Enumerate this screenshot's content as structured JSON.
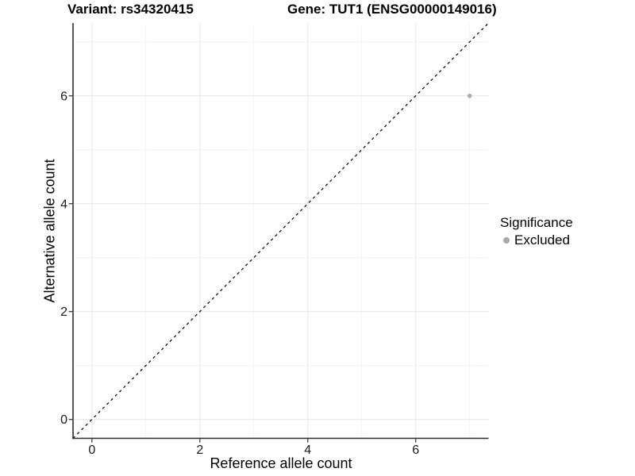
{
  "titles": {
    "left": "Variant: rs34320415",
    "right": "Gene: TUT1 (ENSG00000149016)"
  },
  "chart_data": {
    "type": "scatter",
    "xlabel": "Reference allele count",
    "ylabel": "Alternative allele count",
    "xlim": [
      -0.35,
      7.35
    ],
    "ylim": [
      -0.35,
      7.35
    ],
    "x_ticks": [
      0,
      2,
      4,
      6
    ],
    "y_ticks": [
      0,
      2,
      4,
      6
    ],
    "x_minor_ticks": [
      1,
      3,
      5,
      7
    ],
    "y_minor_ticks": [
      1,
      3,
      5,
      7
    ],
    "grid": true,
    "points": [
      {
        "x": 7,
        "y": 6,
        "series": "Excluded"
      }
    ],
    "reference_line": {
      "kind": "identity",
      "equation": "y = x",
      "style": "dashed",
      "color": "#000000"
    },
    "legend": {
      "title": "Significance",
      "position": "right",
      "items": [
        {
          "label": "Excluded",
          "color": "#a8a8a8"
        }
      ]
    },
    "style": {
      "point_color": "#adadad",
      "major_grid_color": "#e7e7e7",
      "minor_grid_color": "#f2f2f2",
      "axis_line_color": "#2e2e2e",
      "panel_background": "#ffffff"
    }
  }
}
